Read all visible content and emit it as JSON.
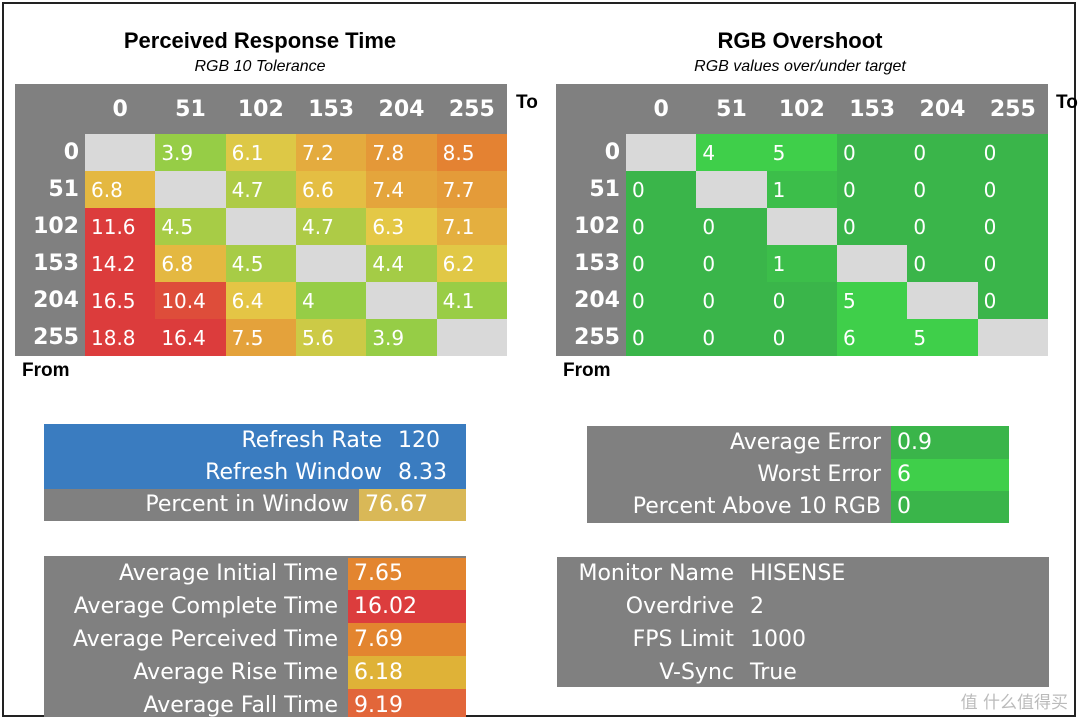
{
  "chart_data": [
    {
      "type": "heatmap",
      "title": "Perceived Response Time",
      "subtitle": "RGB 10 Tolerance",
      "x_axis_label": "To",
      "y_axis_label": "From",
      "x_categories": [
        "0",
        "51",
        "102",
        "153",
        "204",
        "255"
      ],
      "y_categories": [
        "0",
        "51",
        "102",
        "153",
        "204",
        "255"
      ],
      "values": [
        [
          null,
          3.9,
          6.1,
          7.2,
          7.8,
          8.5
        ],
        [
          6.8,
          null,
          4.7,
          6.6,
          7.4,
          7.7
        ],
        [
          11.6,
          4.5,
          null,
          4.7,
          6.3,
          7.1
        ],
        [
          14.2,
          6.8,
          4.5,
          null,
          4.4,
          6.2
        ],
        [
          16.5,
          10.4,
          6.4,
          4,
          null,
          4.1
        ],
        [
          18.8,
          16.4,
          7.5,
          5.6,
          3.9,
          null
        ]
      ],
      "color_scale": "green-yellow-red (low to high)"
    },
    {
      "type": "heatmap",
      "title": "RGB Overshoot",
      "subtitle": "RGB values over/under target",
      "x_axis_label": "To",
      "y_axis_label": "From",
      "x_categories": [
        "0",
        "51",
        "102",
        "153",
        "204",
        "255"
      ],
      "y_categories": [
        "0",
        "51",
        "102",
        "153",
        "204",
        "255"
      ],
      "values": [
        [
          null,
          4,
          5,
          0,
          0,
          0
        ],
        [
          0,
          null,
          1,
          0,
          0,
          0
        ],
        [
          0,
          0,
          null,
          0,
          0,
          0
        ],
        [
          0,
          0,
          1,
          null,
          0,
          0
        ],
        [
          0,
          0,
          0,
          5,
          null,
          0
        ],
        [
          0,
          0,
          0,
          6,
          5,
          null
        ]
      ],
      "color_scale": "green"
    }
  ],
  "refresh_panel": {
    "rows": [
      {
        "label": "Refresh Rate",
        "value": "120",
        "color": "#3a7cc0"
      },
      {
        "label": "Refresh Window",
        "value": "8.33",
        "color": "#3a7cc0"
      },
      {
        "label": "Percent in Window",
        "value": "76.67",
        "color": "#d9b857"
      }
    ]
  },
  "error_panel": {
    "rows": [
      {
        "label": "Average Error",
        "value": "0.9",
        "color": "#3ab54a"
      },
      {
        "label": "Worst Error",
        "value": "6",
        "color": "#3fcf4a"
      },
      {
        "label": "Percent Above 10 RGB",
        "value": "0",
        "color": "#3ab54a"
      }
    ]
  },
  "times_panel": {
    "rows": [
      {
        "label": "Average Initial Time",
        "value": "7.65",
        "color": "#e3852f"
      },
      {
        "label": "Average Complete Time",
        "value": "16.02",
        "color": "#dc3d3d"
      },
      {
        "label": "Average Perceived Time",
        "value": "7.69",
        "color": "#e3852f"
      },
      {
        "label": "Average Rise Time",
        "value": "6.18",
        "color": "#dfb237"
      },
      {
        "label": "Average Fall Time",
        "value": "9.19",
        "color": "#e2663a"
      }
    ]
  },
  "monitor_panel": {
    "rows": [
      {
        "label": "Monitor Name",
        "value": "HISENSE"
      },
      {
        "label": "Overdrive",
        "value": "2"
      },
      {
        "label": "FPS Limit",
        "value": "1000"
      },
      {
        "label": "V-Sync",
        "value": "True"
      }
    ]
  },
  "watermark": "值 什么值得买"
}
